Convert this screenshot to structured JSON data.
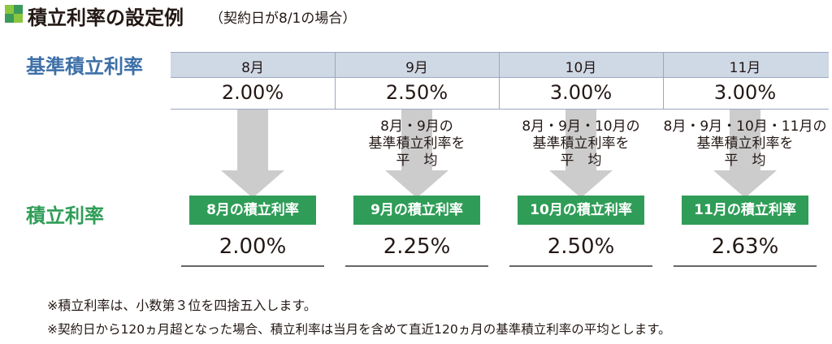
{
  "title": "積立利率の設定例",
  "subtitle": "（契約日が8/1の場合）",
  "row_labels": {
    "base_rate": "基準積立利率",
    "accumulation_rate": "積立利率"
  },
  "colors": {
    "accent_green": "#2f9d57",
    "accent_blue": "#3d70a8",
    "header_bg": "#cfd8e5",
    "arrow_gray": "#cccccc"
  },
  "table": {
    "months": [
      "8月",
      "9月",
      "10月",
      "11月"
    ],
    "base_rates": [
      "2.00%",
      "2.50%",
      "3.00%",
      "3.00%"
    ]
  },
  "notes": [
    {
      "line1": "",
      "line2": "",
      "line3": ""
    },
    {
      "line1": "8月・9月の",
      "line2": "基準積立利率を",
      "line3": "平　均"
    },
    {
      "line1": "8月・9月・10月の",
      "line2": "基準積立利率を",
      "line3": "平　均"
    },
    {
      "line1": "8月・9月・10月・11月の",
      "line2": "基準積立利率を",
      "line3": "平　均"
    }
  ],
  "results": [
    {
      "label": "8月の積立利率",
      "value": "2.00%"
    },
    {
      "label": "9月の積立利率",
      "value": "2.25%"
    },
    {
      "label": "10月の積立利率",
      "value": "2.50%"
    },
    {
      "label": "11月の積立利率",
      "value": "2.63%"
    }
  ],
  "footnotes": [
    "※積立利率は、小数第３位を四捨五入します。",
    "※契約日から120ヵ月超となった場合、積立利率は当月を含めて直近120ヵ月の基準積立利率の平均とします。"
  ]
}
